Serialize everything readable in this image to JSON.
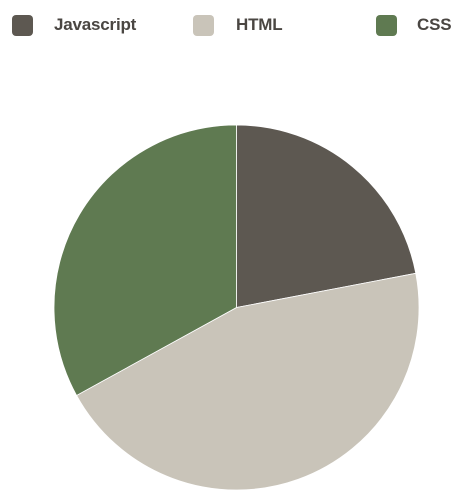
{
  "chart_data": {
    "type": "pie",
    "title": "",
    "legend_position": "top",
    "categories": [
      "Javascript",
      "HTML",
      "CSS"
    ],
    "values": [
      22,
      45,
      33
    ],
    "colors": [
      "#5d5851",
      "#c9c4b9",
      "#5f7a51"
    ]
  }
}
